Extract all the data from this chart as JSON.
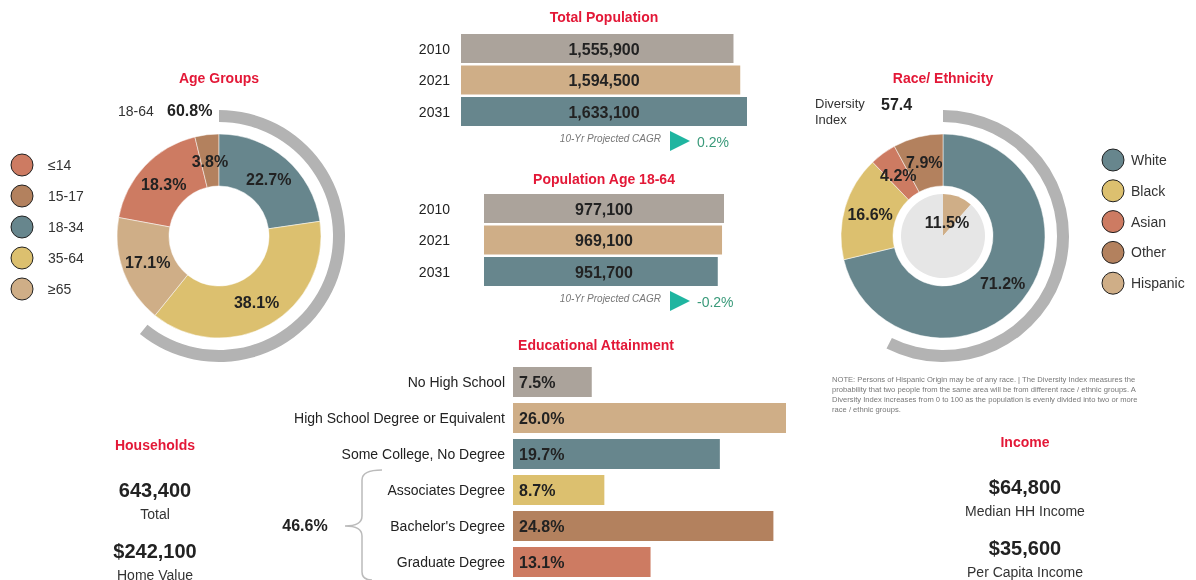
{
  "chart_data": [
    {
      "type": "donut",
      "title": "Age Groups",
      "categories": [
        "≤14",
        "15-17",
        "18-34",
        "35-64",
        "≥65"
      ],
      "values": [
        18.3,
        3.8,
        22.7,
        38.1,
        17.1
      ],
      "colors": [
        "#cd7b62",
        "#b3815e",
        "#67868d",
        "#dcc06f",
        "#cfae87"
      ],
      "value_labels": [
        "18.3%",
        "3.8%",
        "22.7%",
        "38.1%",
        "17.1%"
      ],
      "legend": "left",
      "annotations": [
        "18-64",
        "60.8%"
      ]
    },
    {
      "type": "bar",
      "orientation": "horizontal",
      "title": "Total Population",
      "categories": [
        "2010",
        "2021",
        "2031"
      ],
      "values": [
        1555900,
        1594500,
        1633100
      ],
      "colors": [
        "#aba39b",
        "#cfae87",
        "#67868d"
      ],
      "value_labels": [
        "1,555,900",
        "1,594,500",
        "1,633,100"
      ],
      "annotations": [
        "10-Yr Projected CAGR",
        "0.2%"
      ]
    },
    {
      "type": "donut",
      "title": "Race/ Ethnicity",
      "categories": [
        "White",
        "Black",
        "Asian",
        "Other"
      ],
      "values": [
        71.2,
        16.6,
        4.2,
        7.9
      ],
      "colors": [
        "#67868d",
        "#dcc06f",
        "#cd7b62",
        "#b3815e"
      ],
      "value_labels": [
        "71.2%",
        "16.6%",
        "4.2%",
        "7.9%"
      ],
      "legend": "right",
      "annotations": [
        "Diversity Index",
        "57.4",
        "NOTE: Persons of Hispanic Origin may be of any race. | The Diversity Index measures the probability that two people from the same area will be from different race / ethnic groups. A Diversity Index increases from 0 to 100 as the population is evenly divided into two or more race / ethnic groups."
      ]
    },
    {
      "type": "pie",
      "categories": [
        "Hispanic",
        null
      ],
      "values": [
        11.5,
        88.5
      ],
      "colors": [
        "#cfae87",
        "#e6e6e6"
      ],
      "value_labels": [
        "11.5%",
        null
      ],
      "legend": "right"
    },
    {
      "type": "bar",
      "orientation": "horizontal",
      "title": "Population Age 18-64",
      "categories": [
        "2010",
        "2021",
        "2031"
      ],
      "values": [
        977100,
        969100,
        951700
      ],
      "colors": [
        "#aba39b",
        "#cfae87",
        "#67868d"
      ],
      "value_labels": [
        "977,100",
        "969,100",
        "951,700"
      ],
      "annotations": [
        "10-Yr Projected CAGR",
        "-0.2%"
      ]
    },
    {
      "type": "bar",
      "orientation": "horizontal",
      "title": "Educational Attainment",
      "categories": [
        "No High School",
        "High School Degree or Equivalent",
        "Some College, No Degree",
        "Associates Degree",
        "Bachelor's Degree",
        "Graduate Degree"
      ],
      "values": [
        7.5,
        26.0,
        19.7,
        8.7,
        24.8,
        13.1
      ],
      "colors": [
        "#aba39b",
        "#cfae87",
        "#67868d",
        "#dcc06f",
        "#b3815e",
        "#cd7b62"
      ],
      "value_labels": [
        "7.5%",
        "26.0%",
        "19.7%",
        "8.7%",
        "24.8%",
        "13.1%"
      ],
      "annotations": [
        "46.6%"
      ]
    },
    {
      "type": "other",
      "title": "Households",
      "annotations": [
        "643,400",
        "Total",
        "$242,100",
        "Home Value"
      ]
    },
    {
      "type": "other",
      "title": "Income",
      "annotations": [
        "$64,800",
        "Median HH Income",
        "$35,600",
        "Per Capita Income"
      ]
    }
  ]
}
